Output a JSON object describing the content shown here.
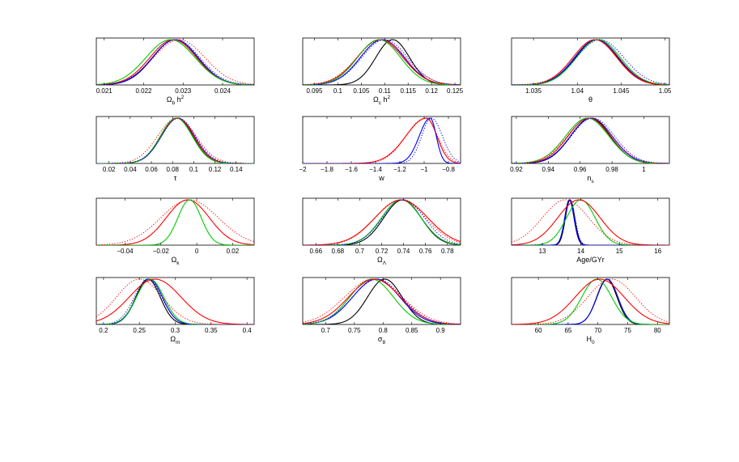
{
  "chart_data": [
    {
      "type": "line",
      "xlabel": {
        "main": "Ω",
        "sub": "b",
        "rest": " h",
        "sup": "2"
      },
      "xlim": [
        0.0208,
        0.0248
      ],
      "ticks": [
        0.021,
        0.022,
        0.023,
        0.024
      ],
      "tick_labels": [
        "0.021",
        "0.022",
        "0.023",
        "0.024"
      ],
      "series": [
        {
          "color": "#000000",
          "style": "solid",
          "mean": 0.0228,
          "sigma": 0.00057
        },
        {
          "color": "#0000ff",
          "style": "solid",
          "mean": 0.0228,
          "sigma": 0.00058
        },
        {
          "color": "#ff0000",
          "style": "solid",
          "mean": 0.02275,
          "sigma": 0.00059
        },
        {
          "color": "#00cc00",
          "style": "solid",
          "mean": 0.02268,
          "sigma": 0.00062
        },
        {
          "color": "#ff0000",
          "style": "dotted",
          "mean": 0.0229,
          "sigma": 0.00065
        },
        {
          "color": "#0000ff",
          "style": "dotted",
          "mean": 0.02282,
          "sigma": 0.0006
        }
      ]
    },
    {
      "type": "line",
      "xlabel": {
        "main": "Ω",
        "sub": "c",
        "rest": " h",
        "sup": "2"
      },
      "xlim": [
        0.0925,
        0.1262
      ],
      "ticks": [
        0.095,
        0.1,
        0.105,
        0.11,
        0.115,
        0.12,
        0.125
      ],
      "tick_labels": [
        "0.095",
        "0.1",
        "0.105",
        "0.11",
        "0.115",
        "0.12",
        "0.125"
      ],
      "series": [
        {
          "color": "#000000",
          "style": "solid",
          "mean": 0.1117,
          "sigma": 0.0036
        },
        {
          "color": "#0000ff",
          "style": "solid",
          "mean": 0.1095,
          "sigma": 0.0047
        },
        {
          "color": "#ff0000",
          "style": "solid",
          "mean": 0.109,
          "sigma": 0.0049
        },
        {
          "color": "#00cc00",
          "style": "solid",
          "mean": 0.1088,
          "sigma": 0.0046
        },
        {
          "color": "#ff0000",
          "style": "dotted",
          "mean": 0.1093,
          "sigma": 0.0052
        },
        {
          "color": "#0000ff",
          "style": "dotted",
          "mean": 0.11,
          "sigma": 0.0049
        }
      ]
    },
    {
      "type": "line",
      "xlabel": {
        "main": "θ"
      },
      "xlim": [
        1.0325,
        1.0505
      ],
      "ticks": [
        1.035,
        1.04,
        1.045,
        1.05
      ],
      "tick_labels": [
        "1.035",
        "1.04",
        "1.045",
        "1.05"
      ],
      "series": [
        {
          "color": "#000000",
          "style": "solid",
          "mean": 1.0422,
          "sigma": 0.0024
        },
        {
          "color": "#0000ff",
          "style": "solid",
          "mean": 1.0422,
          "sigma": 0.0025
        },
        {
          "color": "#ff0000",
          "style": "solid",
          "mean": 1.042,
          "sigma": 0.0025
        },
        {
          "color": "#00cc00",
          "style": "solid",
          "mean": 1.0424,
          "sigma": 0.0025
        },
        {
          "color": "#ff0000",
          "style": "dotted",
          "mean": 1.0421,
          "sigma": 0.0026
        },
        {
          "color": "#0000ff",
          "style": "dotted",
          "mean": 1.0426,
          "sigma": 0.0027
        }
      ]
    },
    {
      "type": "line",
      "xlabel": {
        "main": "τ"
      },
      "xlim": [
        0.008,
        0.157
      ],
      "ticks": [
        0.02,
        0.04,
        0.06,
        0.08,
        0.1,
        0.12,
        0.14
      ],
      "tick_labels": [
        "0.02",
        "0.04",
        "0.06",
        "0.08",
        "0.1",
        "0.12",
        "0.14"
      ],
      "series": [
        {
          "color": "#000000",
          "style": "solid",
          "mean": 0.084,
          "sigma": 0.015
        },
        {
          "color": "#0000ff",
          "style": "solid",
          "mean": 0.085,
          "sigma": 0.0155
        },
        {
          "color": "#ff0000",
          "style": "solid",
          "mean": 0.0845,
          "sigma": 0.0155
        },
        {
          "color": "#00cc00",
          "style": "solid",
          "mean": 0.0835,
          "sigma": 0.015
        },
        {
          "color": "#ff0000",
          "style": "dotted",
          "mean": 0.084,
          "sigma": 0.018
        },
        {
          "color": "#0000ff",
          "style": "dotted",
          "mean": 0.0855,
          "sigma": 0.016
        }
      ]
    },
    {
      "type": "line",
      "xlabel": {
        "main": "w"
      },
      "xlim": [
        -2.0,
        -0.7
      ],
      "ticks": [
        -2,
        -1.8,
        -1.6,
        -1.4,
        -1.2,
        -1,
        -0.8
      ],
      "tick_labels": [
        "−2",
        "−1.8",
        "−1.6",
        "−1.4",
        "−1.2",
        "−1",
        "−0.8"
      ],
      "series": [
        {
          "color": "#ff0000",
          "style": "solid",
          "mean": -0.98,
          "sigma": 0.14,
          "skew": {
            "left": 0.17,
            "right": 0.085
          }
        },
        {
          "color": "#0000ff",
          "style": "solid",
          "mean": -0.95,
          "sigma": 0.08,
          "skew": {
            "left": 0.09,
            "right": 0.05
          }
        },
        {
          "color": "#0000ff",
          "style": "dotted",
          "mean": -0.94,
          "sigma": 0.1,
          "skew": {
            "left": 0.08,
            "right": 0.09
          }
        },
        {
          "color": "#ff0000",
          "style": "dotted",
          "mean": -0.99,
          "sigma": 0.16,
          "skew": {
            "left": 0.16,
            "right": 0.1
          }
        }
      ]
    },
    {
      "type": "line",
      "xlabel": {
        "main": "n",
        "sub": "s"
      },
      "xlim": [
        0.917,
        1.016
      ],
      "ticks": [
        0.92,
        0.94,
        0.96,
        0.98,
        1.0
      ],
      "tick_labels": [
        "0.92",
        "0.94",
        "0.96",
        "0.98",
        "1"
      ],
      "series": [
        {
          "color": "#000000",
          "style": "solid",
          "mean": 0.9665,
          "sigma": 0.0125
        },
        {
          "color": "#0000ff",
          "style": "solid",
          "mean": 0.967,
          "sigma": 0.013
        },
        {
          "color": "#ff0000",
          "style": "solid",
          "mean": 0.9655,
          "sigma": 0.013
        },
        {
          "color": "#00cc00",
          "style": "solid",
          "mean": 0.9645,
          "sigma": 0.0135
        },
        {
          "color": "#ff0000",
          "style": "dotted",
          "mean": 0.966,
          "sigma": 0.014
        },
        {
          "color": "#0000ff",
          "style": "dotted",
          "mean": 0.968,
          "sigma": 0.0135
        }
      ]
    },
    {
      "type": "line",
      "xlabel": {
        "main": "Ω",
        "sub": "k"
      },
      "xlim": [
        -0.056,
        0.032
      ],
      "ticks": [
        -0.04,
        -0.02,
        0,
        0.02
      ],
      "tick_labels": [
        "−0.04",
        "−0.02",
        "0",
        "0.02"
      ],
      "series": [
        {
          "color": "#ff0000",
          "style": "solid",
          "mean": -0.005,
          "sigma": 0.012
        },
        {
          "color": "#00cc00",
          "style": "solid",
          "mean": -0.004,
          "sigma": 0.0065
        },
        {
          "color": "#ff0000",
          "style": "dotted",
          "mean": -0.004,
          "sigma": 0.016
        }
      ]
    },
    {
      "type": "line",
      "xlabel": {
        "main": "Ω",
        "sub": "Λ"
      },
      "xlim": [
        0.648,
        0.792
      ],
      "ticks": [
        0.66,
        0.68,
        0.7,
        0.72,
        0.74,
        0.76,
        0.78
      ],
      "tick_labels": [
        "0.66",
        "0.68",
        "0.7",
        "0.72",
        "0.74",
        "0.76",
        "0.78"
      ],
      "series": [
        {
          "color": "#000000",
          "style": "solid",
          "mean": 0.739,
          "sigma": 0.017
        },
        {
          "color": "#0000ff",
          "style": "solid",
          "mean": 0.738,
          "sigma": 0.018
        },
        {
          "color": "#00cc00",
          "style": "solid",
          "mean": 0.738,
          "sigma": 0.018
        },
        {
          "color": "#ff0000",
          "style": "solid",
          "mean": 0.738,
          "sigma": 0.024
        },
        {
          "color": "#ff0000",
          "style": "dotted",
          "mean": 0.737,
          "sigma": 0.023
        },
        {
          "color": "#0000ff",
          "style": "dotted",
          "mean": 0.74,
          "sigma": 0.019
        }
      ]
    },
    {
      "type": "line",
      "xlabel": {
        "main": "Age/GYr"
      },
      "xlim": [
        12.2,
        16.3
      ],
      "ticks": [
        13,
        14,
        15,
        16
      ],
      "tick_labels": [
        "13",
        "14",
        "15",
        "16"
      ],
      "series": [
        {
          "color": "#000000",
          "style": "solid",
          "mean": 13.72,
          "sigma": 0.12
        },
        {
          "color": "#0000ff",
          "style": "solid",
          "mean": 13.7,
          "sigma": 0.12
        },
        {
          "color": "#00cc00",
          "style": "solid",
          "mean": 14.0,
          "sigma": 0.37
        },
        {
          "color": "#ff0000",
          "style": "solid",
          "mean": 13.95,
          "sigma": 0.55
        },
        {
          "color": "#ff0000",
          "style": "dotted",
          "mean": 13.6,
          "sigma": 0.6
        },
        {
          "color": "#0000ff",
          "style": "dotted",
          "mean": 13.72,
          "sigma": 0.13
        }
      ]
    },
    {
      "type": "line",
      "xlabel": {
        "main": "Ω",
        "sub": "m"
      },
      "xlim": [
        0.19,
        0.41
      ],
      "ticks": [
        0.2,
        0.25,
        0.3,
        0.35,
        0.4
      ],
      "tick_labels": [
        "0.2",
        "0.25",
        "0.3",
        "0.35",
        "0.4"
      ],
      "series": [
        {
          "color": "#000000",
          "style": "solid",
          "mean": 0.262,
          "sigma": 0.017
        },
        {
          "color": "#0000ff",
          "style": "solid",
          "mean": 0.264,
          "sigma": 0.018
        },
        {
          "color": "#00cc00",
          "style": "solid",
          "mean": 0.265,
          "sigma": 0.019
        },
        {
          "color": "#ff0000",
          "style": "solid",
          "mean": 0.272,
          "sigma": 0.036
        },
        {
          "color": "#ff0000",
          "style": "dotted",
          "mean": 0.25,
          "sigma": 0.032
        },
        {
          "color": "#0000ff",
          "style": "dotted",
          "mean": 0.262,
          "sigma": 0.019
        }
      ]
    },
    {
      "type": "line",
      "xlabel": {
        "main": "σ",
        "sub": "8"
      },
      "xlim": [
        0.66,
        0.935
      ],
      "ticks": [
        0.7,
        0.75,
        0.8,
        0.85,
        0.9
      ],
      "tick_labels": [
        "0.7",
        "0.75",
        "0.8",
        "0.85",
        "0.9"
      ],
      "series": [
        {
          "color": "#000000",
          "style": "solid",
          "mean": 0.803,
          "sigma": 0.03
        },
        {
          "color": "#0000ff",
          "style": "solid",
          "mean": 0.788,
          "sigma": 0.041
        },
        {
          "color": "#00cc00",
          "style": "solid",
          "mean": 0.78,
          "sigma": 0.038
        },
        {
          "color": "#ff0000",
          "style": "solid",
          "mean": 0.785,
          "sigma": 0.045
        },
        {
          "color": "#ff0000",
          "style": "dotted",
          "mean": 0.783,
          "sigma": 0.05
        },
        {
          "color": "#0000ff",
          "style": "dotted",
          "mean": 0.79,
          "sigma": 0.043
        }
      ]
    },
    {
      "type": "line",
      "xlabel": {
        "main": "H",
        "sub": "0"
      },
      "xlim": [
        55.5,
        82.0
      ],
      "ticks": [
        60,
        65,
        70,
        75,
        80
      ],
      "tick_labels": [
        "60",
        "65",
        "70",
        "75",
        "80"
      ],
      "series": [
        {
          "color": "#000000",
          "style": "solid",
          "mean": 71.5,
          "sigma": 1.7
        },
        {
          "color": "#0000ff",
          "style": "solid",
          "mean": 71.6,
          "sigma": 1.75
        },
        {
          "color": "#00cc00",
          "style": "solid",
          "mean": 69.8,
          "sigma": 2.5
        },
        {
          "color": "#ff0000",
          "style": "solid",
          "mean": 70.3,
          "sigma": 4.1
        },
        {
          "color": "#ff0000",
          "style": "dotted",
          "mean": 72.3,
          "sigma": 4.0
        }
      ]
    }
  ]
}
